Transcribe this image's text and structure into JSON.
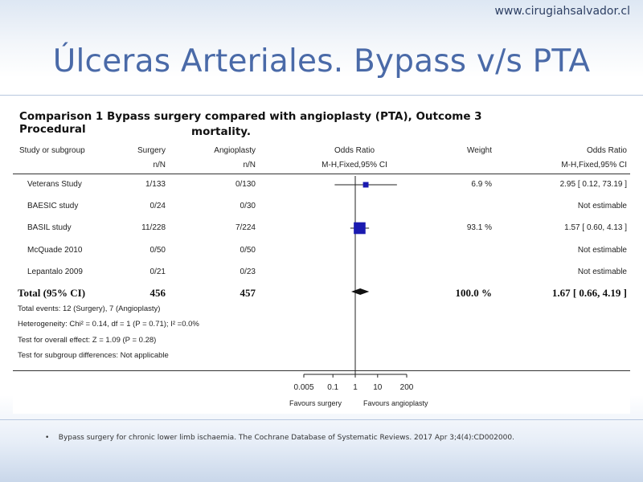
{
  "site_url": "www.cirugiahsalvador.cl",
  "slide_title": "Úlceras Arteriales. Bypass v/s PTA",
  "comparison_title_line1": "Comparison 1 Bypass surgery compared with angioplasty (PTA), Outcome 3 Procedural",
  "comparison_title_line2": "mortality.",
  "headers": {
    "study": "Study or subgroup",
    "surgery": "Surgery",
    "surgery_sub": "n/N",
    "angio": "Angioplasty",
    "angio_sub": "n/N",
    "or": "Odds Ratio",
    "or_sub": "M-H,Fixed,95% CI",
    "weight": "Weight",
    "or2": "Odds Ratio",
    "or2_sub": "M-H,Fixed,95% CI"
  },
  "rows": [
    {
      "study": "Veterans Study",
      "surgery": "1/133",
      "angio": "0/130",
      "weight": "6.9 %",
      "or_text": "2.95 [ 0.12, 73.19 ]"
    },
    {
      "study": "BAESIC study",
      "surgery": "0/24",
      "angio": "0/30",
      "weight": "",
      "or_text": "Not estimable"
    },
    {
      "study": "BASIL study",
      "surgery": "11/228",
      "angio": "7/224",
      "weight": "93.1 %",
      "or_text": "1.57 [ 0.60, 4.13 ]"
    },
    {
      "study": "McQuade 2010",
      "surgery": "0/50",
      "angio": "0/50",
      "weight": "",
      "or_text": "Not estimable"
    },
    {
      "study": "Lepantalo 2009",
      "surgery": "0/21",
      "angio": "0/23",
      "weight": "",
      "or_text": "Not estimable"
    }
  ],
  "total": {
    "label": "Total (95% CI)",
    "surgery": "456",
    "angio": "457",
    "weight": "100.0 %",
    "or_text": "1.67 [ 0.66, 4.19 ]"
  },
  "footnotes": [
    "Total events: 12 (Surgery), 7 (Angioplasty)",
    "Heterogeneity: Chi² = 0.14, df = 1 (P = 0.71); I² =0.0%",
    "Test for overall effect: Z = 1.09 (P = 0.28)",
    "Test for subgroup differences: Not applicable"
  ],
  "axis": {
    "ticks": [
      "0.005",
      "0.1",
      "1",
      "10",
      "200"
    ],
    "favours_left": "Favours surgery",
    "favours_right": "Favours angioplasty"
  },
  "citation": "Bypass surgery for chronic lower limb ischaemia. The Cochrane Database of Systematic Reviews. 2017 Apr 3;4(4):CD002000.",
  "colors": {
    "title": "#4a6aa8",
    "marker": "#1a1ab0",
    "text": "#222222"
  },
  "chart_data": {
    "type": "forest",
    "scale": "log",
    "xlim": [
      0.005,
      200
    ],
    "x_ticks": [
      0.005,
      0.1,
      1,
      10,
      200
    ],
    "studies": [
      {
        "name": "Veterans Study",
        "or": 2.95,
        "lo": 0.12,
        "hi": 73.19,
        "weight": 6.9
      },
      {
        "name": "BASIL study",
        "or": 1.57,
        "lo": 0.6,
        "hi": 4.13,
        "weight": 93.1
      }
    ],
    "pooled": {
      "or": 1.67,
      "lo": 0.66,
      "hi": 4.19
    }
  }
}
